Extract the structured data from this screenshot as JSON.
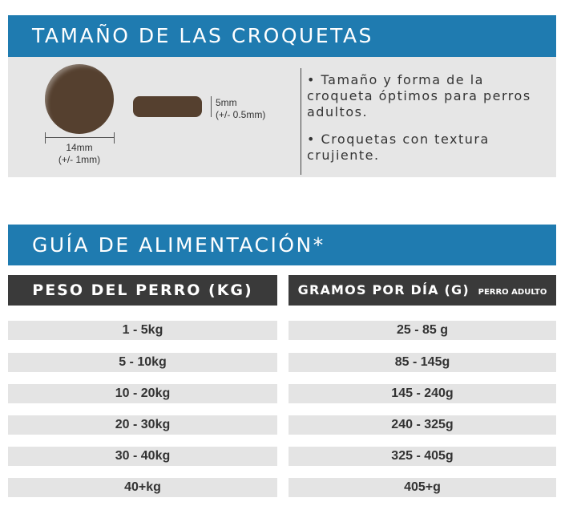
{
  "size_section": {
    "title": "TAMAÑO DE LAS CROQUETAS",
    "round_kibble": {
      "width": "14mm",
      "tolerance": "(+/- 1mm)"
    },
    "pill_kibble": {
      "height": "5mm",
      "tolerance": "(+/- 0.5mm)"
    },
    "bullets": [
      "• Tamaño y forma de la croqueta óptimos para perros adultos.",
      "• Croquetas con textura crujiente."
    ],
    "colors": {
      "header": "#1f7bb0",
      "kibble": "#55402f",
      "panel": "#e6e6e6"
    }
  },
  "feeding_section": {
    "title": "GUÍA DE ALIMENTACIÓN*",
    "col_weight": "PESO DEL PERRO (KG)",
    "col_grams": "GRAMOS POR DÍA (G)",
    "col_grams_note": "PERRO ADULTO",
    "rows": [
      {
        "weight": "1 - 5kg",
        "grams": "25 - 85 g"
      },
      {
        "weight": "5 - 10kg",
        "grams": "85 - 145g"
      },
      {
        "weight": "10 - 20kg",
        "grams": "145 - 240g"
      },
      {
        "weight": "20 - 30kg",
        "grams": "240 - 325g"
      },
      {
        "weight": "30 - 40kg",
        "grams": "325 - 405g"
      },
      {
        "weight": "40+kg",
        "grams": "405+g"
      }
    ]
  }
}
